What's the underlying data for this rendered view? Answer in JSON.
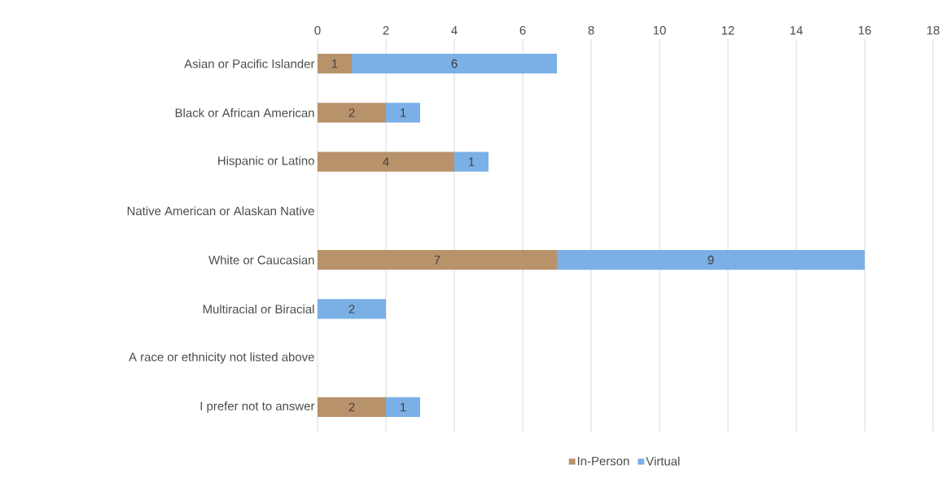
{
  "chart_data": {
    "type": "bar",
    "orientation": "horizontal",
    "stacked": true,
    "data_labels": true,
    "grid": "x",
    "legend": "bottom",
    "categories": [
      "Asian or Pacific Islander",
      "Black or African American",
      "Hispanic or Latino",
      "Native American or Alaskan Native",
      "White or Caucasian",
      "Multiracial or Biracial",
      "A race or ethnicity not listed above",
      "I prefer not to answer"
    ],
    "series": [
      {
        "name": "In-Person",
        "color": "#b8926a",
        "values": [
          1,
          2,
          4,
          null,
          7,
          null,
          null,
          2
        ]
      },
      {
        "name": "Virtual",
        "color": "#7ab0e6",
        "values": [
          6,
          1,
          1,
          null,
          9,
          2,
          null,
          1
        ]
      }
    ],
    "xlim": [
      0,
      18
    ],
    "xticks": [
      0,
      2,
      4,
      6,
      8,
      10,
      12,
      14,
      16,
      18
    ]
  }
}
